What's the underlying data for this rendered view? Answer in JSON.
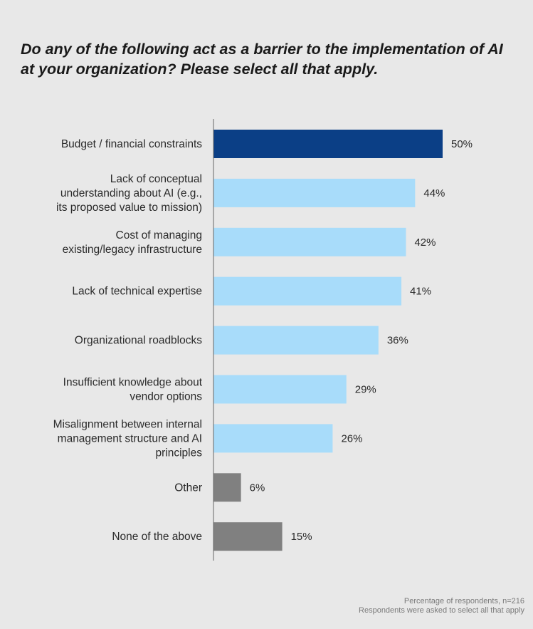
{
  "title": "Do any of the following act as a barrier to the implementation of AI at your organization? Please select all that apply.",
  "footnote": {
    "line1": "Percentage of respondents, n=216",
    "line2": "Respondents were asked to select all that apply"
  },
  "colors": {
    "highlight": "#0b3f86",
    "primary": "#a8dcfa",
    "other": "#808080",
    "axis": "#666666"
  },
  "chart_data": {
    "type": "bar",
    "orientation": "horizontal",
    "title": "Do any of the following act as a barrier to the implementation of AI at your organization? Please select all that apply.",
    "xlabel": "",
    "ylabel": "",
    "xlim": [
      0,
      50
    ],
    "grid": false,
    "categories": [
      [
        "Budget / financial constraints"
      ],
      [
        "Lack of conceptual",
        "understanding about AI (e.g.,",
        "its proposed value to mission)"
      ],
      [
        "Cost of managing",
        "existing/legacy infrastructure"
      ],
      [
        "Lack of technical expertise"
      ],
      [
        "Organizational roadblocks"
      ],
      [
        "Insufficient knowledge about",
        "vendor options"
      ],
      [
        "Misalignment between internal",
        "management structure and AI",
        "principles"
      ],
      [
        "Other"
      ],
      [
        "None of the above"
      ]
    ],
    "values": [
      50,
      44,
      42,
      41,
      36,
      29,
      26,
      6,
      15
    ],
    "value_labels": [
      "50%",
      "44%",
      "42%",
      "41%",
      "36%",
      "29%",
      "26%",
      "6%",
      "15%"
    ],
    "bar_colors": [
      "highlight",
      "primary",
      "primary",
      "primary",
      "primary",
      "primary",
      "primary",
      "other",
      "other"
    ]
  }
}
